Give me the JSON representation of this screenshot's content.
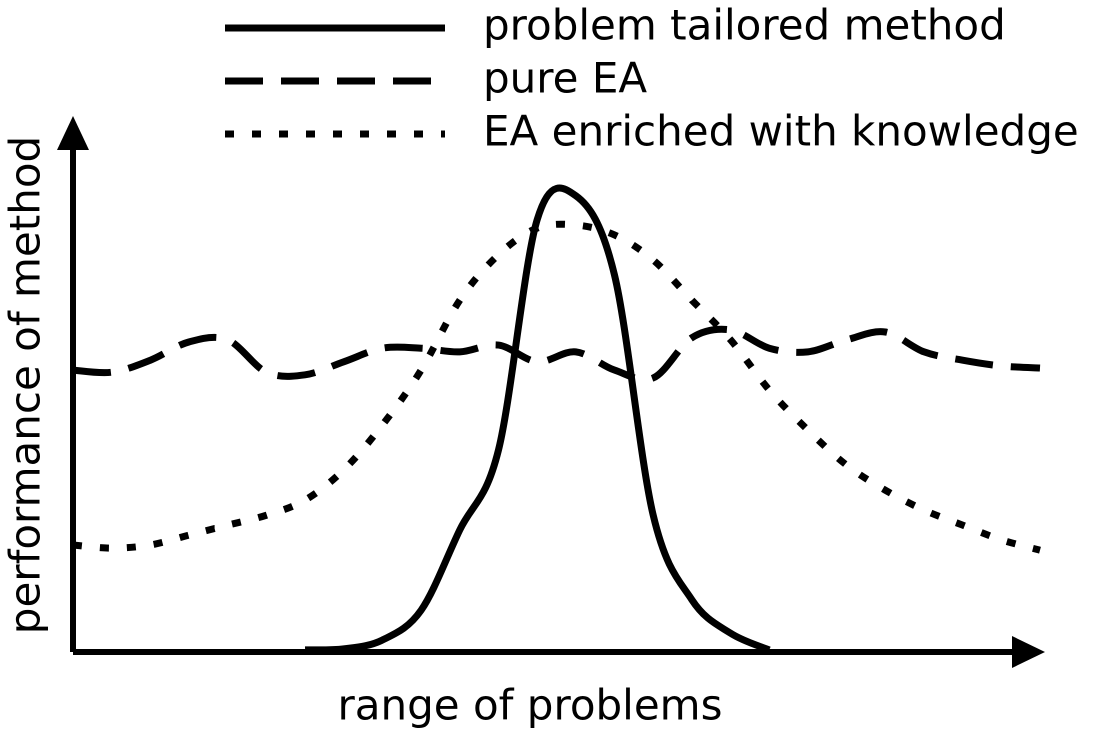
{
  "chart_data": {
    "type": "line",
    "x_label": "range of problems",
    "y_label": "performance of method",
    "xlim": [
      0,
      100
    ],
    "ylim": [
      0,
      100
    ],
    "x": [
      0,
      4,
      8,
      12,
      16,
      20,
      24,
      28,
      32,
      36,
      40,
      44,
      48,
      52,
      56,
      60,
      64,
      68,
      72,
      76,
      80,
      84,
      88,
      92,
      96,
      100
    ],
    "series": [
      {
        "name": "problem tailored method",
        "color": "#000000",
        "style": "solid",
        "values": [
          null,
          null,
          null,
          null,
          null,
          null,
          0.4,
          0.6,
          2.3,
          8,
          23.4,
          38.7,
          82.8,
          87.4,
          72.2,
          26.2,
          10,
          3.6,
          0.4,
          null,
          null,
          null,
          null,
          null,
          null,
          null
        ]
      },
      {
        "name": "pure EA",
        "color": "#000000",
        "style": "dashed",
        "values": [
          54,
          53.6,
          55.9,
          59.4,
          59.8,
          53.6,
          53.1,
          55.6,
          58.2,
          58.2,
          57.5,
          58.8,
          55.6,
          57.5,
          54,
          52.5,
          60.2,
          61.7,
          58.2,
          57.5,
          59.8,
          61.3,
          57.5,
          55.9,
          54.8,
          54.4
        ]
      },
      {
        "name": "EA enriched with knowledge",
        "color": "#000000",
        "style": "dotted",
        "values": [
          20.5,
          19.9,
          20.5,
          22.4,
          24.3,
          26.2,
          29.1,
          34.9,
          43.5,
          54,
          67.4,
          76.1,
          81.2,
          81.8,
          79.9,
          75.1,
          67.4,
          59.8,
          50.2,
          42.5,
          35.8,
          31,
          27.2,
          24.3,
          21.5,
          19.5
        ]
      }
    ]
  }
}
